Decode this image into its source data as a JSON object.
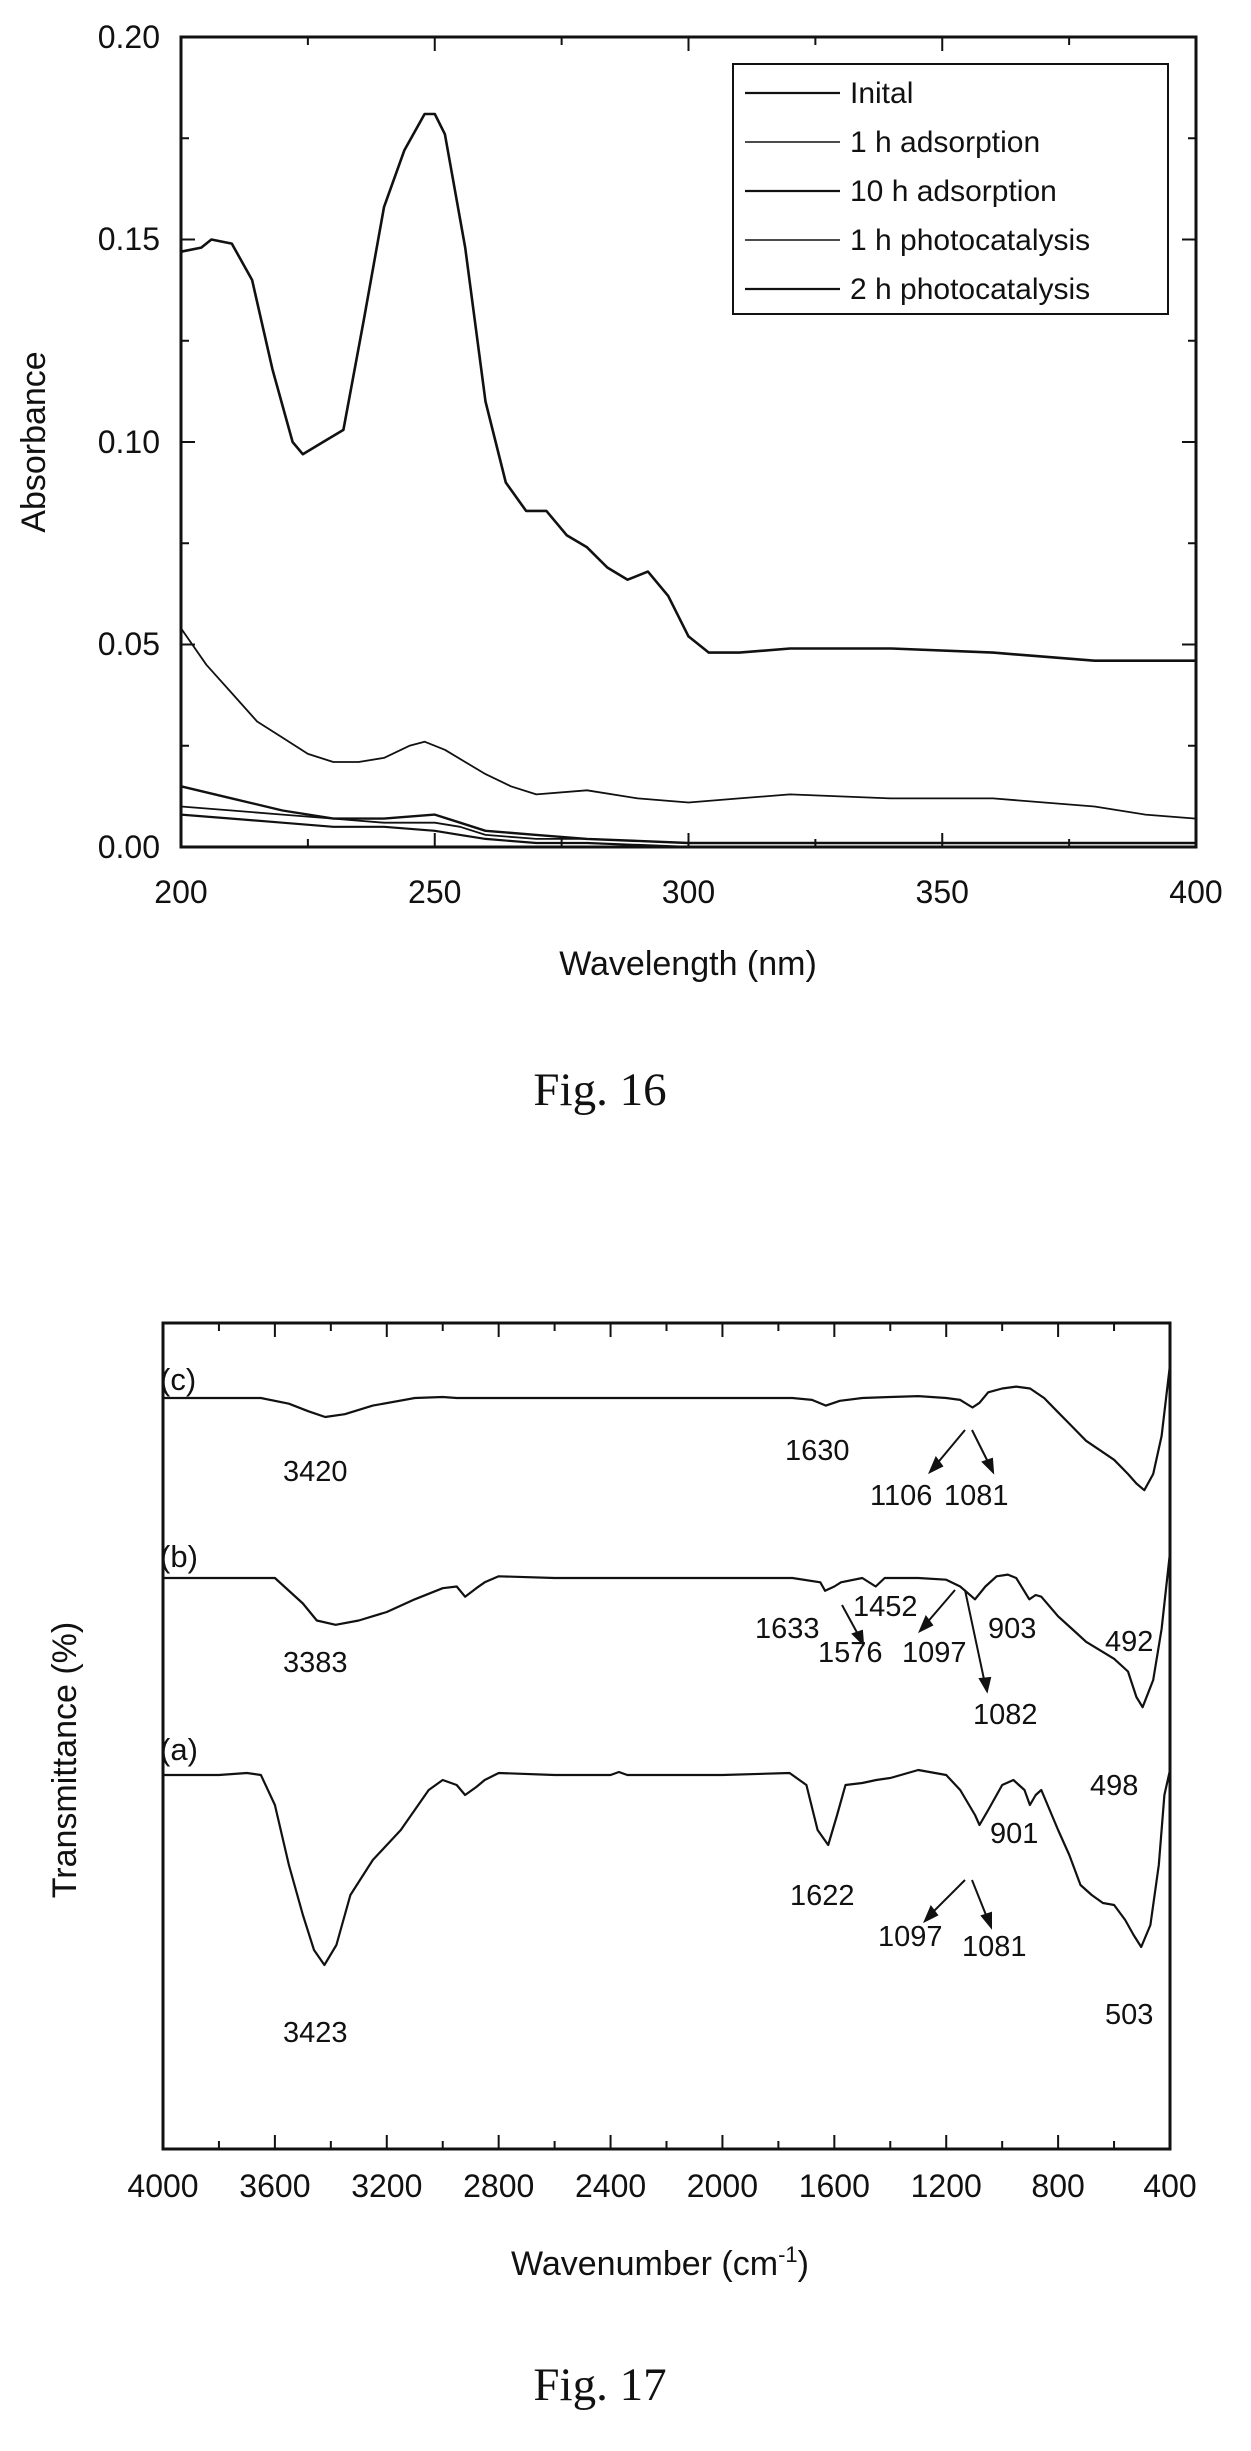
{
  "chart_data": [
    {
      "type": "line",
      "caption": "Fig. 16",
      "xlabel": "Wavelength (nm)",
      "ylabel": "Absorbance",
      "xlim": [
        200,
        400
      ],
      "ylim": [
        0,
        0.2
      ],
      "x_ticks": [
        "200",
        "250",
        "300",
        "350",
        "400"
      ],
      "y_ticks": [
        "0.00",
        "0.05",
        "0.10",
        "0.15",
        "0.20"
      ],
      "grid": false,
      "legend_position": "top-right",
      "series": [
        {
          "name": "Inital",
          "x": [
            200,
            204,
            206,
            210,
            214,
            218,
            222,
            224,
            228,
            232,
            236,
            240,
            244,
            248,
            250,
            252,
            256,
            260,
            264,
            268,
            272,
            276,
            280,
            284,
            288,
            292,
            296,
            300,
            304,
            310,
            320,
            340,
            360,
            380,
            400
          ],
          "y": [
            0.147,
            0.148,
            0.15,
            0.149,
            0.14,
            0.118,
            0.1,
            0.097,
            0.1,
            0.103,
            0.13,
            0.158,
            0.172,
            0.181,
            0.181,
            0.176,
            0.148,
            0.11,
            0.09,
            0.083,
            0.083,
            0.077,
            0.074,
            0.069,
            0.066,
            0.068,
            0.062,
            0.052,
            0.048,
            0.048,
            0.049,
            0.049,
            0.048,
            0.046,
            0.046
          ]
        },
        {
          "name": "1 h adsorption",
          "x": [
            200,
            205,
            210,
            215,
            220,
            225,
            230,
            235,
            240,
            245,
            248,
            252,
            256,
            260,
            265,
            270,
            280,
            290,
            300,
            310,
            320,
            340,
            360,
            380,
            390,
            400
          ],
          "y": [
            0.054,
            0.045,
            0.038,
            0.031,
            0.027,
            0.023,
            0.021,
            0.021,
            0.022,
            0.025,
            0.026,
            0.024,
            0.021,
            0.018,
            0.015,
            0.013,
            0.014,
            0.012,
            0.011,
            0.012,
            0.013,
            0.012,
            0.012,
            0.01,
            0.008,
            0.007
          ]
        },
        {
          "name": "10 h adsorption",
          "x": [
            200,
            210,
            220,
            230,
            240,
            250,
            255,
            260,
            270,
            280,
            300,
            320,
            340,
            360,
            380,
            400
          ],
          "y": [
            0.015,
            0.012,
            0.009,
            0.007,
            0.007,
            0.008,
            0.006,
            0.004,
            0.003,
            0.002,
            0.001,
            0.001,
            0.001,
            0.001,
            0.001,
            0.001
          ]
        },
        {
          "name": "1 h photocatalysis",
          "x": [
            200,
            210,
            220,
            230,
            240,
            250,
            255,
            260,
            270,
            280,
            300,
            320,
            340,
            360,
            380,
            400
          ],
          "y": [
            0.01,
            0.009,
            0.008,
            0.007,
            0.006,
            0.006,
            0.005,
            0.003,
            0.002,
            0.002,
            0.001,
            0.001,
            0.001,
            0.001,
            0.001,
            0.001
          ]
        },
        {
          "name": "2 h photocatalysis",
          "x": [
            200,
            210,
            220,
            230,
            240,
            250,
            255,
            260,
            270,
            280,
            300,
            320,
            340,
            360,
            380,
            400
          ],
          "y": [
            0.008,
            0.007,
            0.006,
            0.005,
            0.005,
            0.004,
            0.003,
            0.002,
            0.001,
            0.001,
            0.0,
            0.0,
            0.0,
            0.0,
            0.0,
            0.0
          ]
        }
      ]
    },
    {
      "type": "line",
      "caption": "Fig. 17",
      "xlabel": "Wavenumber (cm",
      "xlabel_superscript": "-1",
      "xlabel_suffix": ")",
      "ylabel": "Transmittance (%)",
      "xlim": [
        4000,
        400
      ],
      "x_reversed": true,
      "x_ticks": [
        "4000",
        "3600",
        "3200",
        "2800",
        "2400",
        "2000",
        "1600",
        "1200",
        "800",
        "400"
      ],
      "y_ticks_shown": false,
      "grid": false,
      "series": [
        {
          "name": "(c)",
          "x": [
            4000,
            3800,
            3650,
            3550,
            3480,
            3420,
            3350,
            3250,
            3100,
            3000,
            2950,
            2900,
            2850,
            2800,
            2600,
            2400,
            2000,
            1750,
            1680,
            1630,
            1580,
            1500,
            1400,
            1300,
            1200,
            1150,
            1106,
            1081,
            1050,
            1000,
            950,
            900,
            850,
            800,
            750,
            700,
            650,
            600,
            550,
            520,
            492,
            460,
            430,
            400
          ],
          "y": [
            0.0,
            0.0,
            0.0,
            -0.06,
            -0.14,
            -0.2,
            -0.17,
            -0.08,
            0.0,
            0.01,
            0.0,
            0.0,
            0.0,
            0.0,
            0.0,
            0.0,
            0.0,
            0.0,
            -0.02,
            -0.08,
            -0.03,
            0.0,
            0.01,
            0.02,
            0.0,
            -0.02,
            -0.1,
            -0.05,
            0.06,
            0.1,
            0.12,
            0.1,
            0.0,
            -0.15,
            -0.3,
            -0.45,
            -0.55,
            -0.65,
            -0.8,
            -0.9,
            -0.97,
            -0.8,
            -0.4,
            0.35
          ]
        },
        {
          "name": "(b)",
          "x": [
            4000,
            3800,
            3600,
            3500,
            3450,
            3383,
            3300,
            3200,
            3100,
            3000,
            2950,
            2920,
            2880,
            2850,
            2800,
            2600,
            2400,
            2000,
            1750,
            1650,
            1633,
            1600,
            1576,
            1500,
            1452,
            1420,
            1350,
            1300,
            1200,
            1150,
            1097,
            1060,
            1020,
            980,
            950,
            903,
            880,
            860,
            800,
            750,
            700,
            650,
            600,
            550,
            520,
            498,
            460,
            430,
            400
          ],
          "y": [
            0.0,
            0.0,
            0.0,
            -0.3,
            -0.5,
            -0.55,
            -0.5,
            -0.4,
            -0.25,
            -0.12,
            -0.1,
            -0.22,
            -0.12,
            -0.05,
            0.02,
            0.0,
            0.0,
            0.0,
            0.0,
            -0.05,
            -0.15,
            -0.1,
            -0.05,
            0.0,
            -0.1,
            0.0,
            0.0,
            0.0,
            -0.02,
            -0.1,
            -0.25,
            -0.1,
            0.02,
            0.04,
            0.0,
            -0.25,
            -0.2,
            -0.22,
            -0.45,
            -0.6,
            -0.75,
            -0.85,
            -0.95,
            -1.1,
            -1.4,
            -1.52,
            -1.2,
            -0.6,
            0.3
          ]
        },
        {
          "name": "(a)",
          "x": [
            4000,
            3800,
            3700,
            3650,
            3600,
            3550,
            3500,
            3460,
            3423,
            3380,
            3330,
            3250,
            3150,
            3050,
            3000,
            2950,
            2920,
            2880,
            2850,
            2800,
            2600,
            2400,
            2370,
            2340,
            2000,
            1760,
            1700,
            1660,
            1622,
            1590,
            1560,
            1500,
            1450,
            1400,
            1300,
            1200,
            1150,
            1097,
            1081,
            1050,
            1000,
            960,
            940,
            920,
            901,
            880,
            860,
            830,
            800,
            760,
            720,
            680,
            640,
            600,
            560,
            530,
            503,
            470,
            440,
            420,
            400
          ],
          "y": [
            0.0,
            0.0,
            0.02,
            0.0,
            -0.3,
            -0.9,
            -1.4,
            -1.75,
            -1.9,
            -1.7,
            -1.2,
            -0.85,
            -0.55,
            -0.15,
            -0.05,
            -0.1,
            -0.2,
            -0.12,
            -0.05,
            0.02,
            0.0,
            0.0,
            0.03,
            0.0,
            0.0,
            0.02,
            -0.1,
            -0.55,
            -0.7,
            -0.4,
            -0.1,
            -0.08,
            -0.05,
            -0.03,
            0.05,
            0.0,
            -0.15,
            -0.4,
            -0.5,
            -0.35,
            -0.1,
            -0.05,
            -0.1,
            -0.15,
            -0.3,
            -0.2,
            -0.15,
            -0.35,
            -0.55,
            -0.8,
            -1.1,
            -1.2,
            -1.28,
            -1.3,
            -1.45,
            -1.6,
            -1.72,
            -1.5,
            -0.9,
            -0.2,
            0.05
          ]
        }
      ],
      "peak_labels": [
        {
          "text": "3420",
          "x": 3420,
          "series": "(c)"
        },
        {
          "text": "1630",
          "x": 1630,
          "series": "(c)"
        },
        {
          "text": "1106",
          "x": 1106,
          "series": "(c)"
        },
        {
          "text": "1081",
          "x": 1081,
          "series": "(c)"
        },
        {
          "text": "492",
          "x": 492,
          "series": "(c)"
        },
        {
          "text": "3383",
          "x": 3383,
          "series": "(b)"
        },
        {
          "text": "1633",
          "x": 1633,
          "series": "(b)"
        },
        {
          "text": "1452",
          "x": 1452,
          "series": "(b)"
        },
        {
          "text": "1576",
          "x": 1576,
          "series": "(b)"
        },
        {
          "text": "1097",
          "x": 1097,
          "series": "(b)"
        },
        {
          "text": "903",
          "x": 903,
          "series": "(b)"
        },
        {
          "text": "1082",
          "x": 1082,
          "series": "(b)"
        },
        {
          "text": "498",
          "x": 498,
          "series": "(b)"
        },
        {
          "text": "3423",
          "x": 3423,
          "series": "(a)"
        },
        {
          "text": "1622",
          "x": 1622,
          "series": "(a)"
        },
        {
          "text": "901",
          "x": 901,
          "series": "(a)"
        },
        {
          "text": "1097",
          "x": 1097,
          "series": "(a)"
        },
        {
          "text": "1081",
          "x": 1081,
          "series": "(a)"
        },
        {
          "text": "503",
          "x": 503,
          "series": "(a)"
        }
      ]
    }
  ]
}
